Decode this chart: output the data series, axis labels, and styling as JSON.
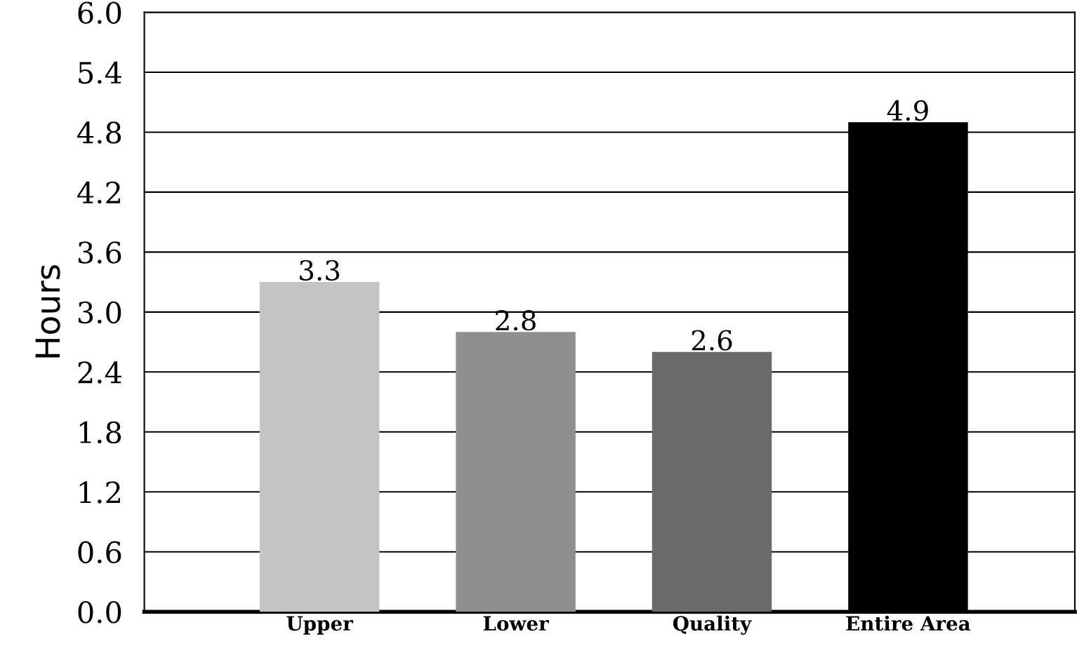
{
  "chart_data": {
    "type": "bar",
    "ylabel": "Hours",
    "categories": [
      "Upper",
      "Lower",
      "Quality",
      "Entire Area"
    ],
    "values": [
      3.3,
      2.8,
      2.6,
      4.9
    ],
    "colors": [
      "#c4c4c4",
      "#8f8f8f",
      "#6a6a6a",
      "#000000"
    ],
    "ylim": [
      0.0,
      6.0
    ],
    "yticks": [
      {
        "value": 0.0,
        "label": "0.0"
      },
      {
        "value": 0.6,
        "label": "0.6"
      },
      {
        "value": 1.2,
        "label": "1.2"
      },
      {
        "value": 1.8,
        "label": "1.8"
      },
      {
        "value": 2.4,
        "label": "2.4"
      },
      {
        "value": 3.0,
        "label": "3.0"
      },
      {
        "value": 3.6,
        "label": "3.6"
      },
      {
        "value": 4.2,
        "label": "4.2"
      },
      {
        "value": 4.8,
        "label": "4.8"
      },
      {
        "value": 5.4,
        "label": "5.4"
      },
      {
        "value": 6.0,
        "label": "6.0"
      }
    ],
    "grid": "y",
    "data_labels": true
  }
}
